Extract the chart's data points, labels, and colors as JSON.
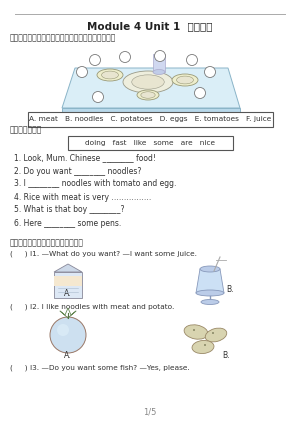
{
  "title": "Module 4 Unit 1  素质评价",
  "section1": "一、在食物或饮料旁的圆圈中填上相应的字母序号。",
  "word_box1": "A. meat   B. noodles   C. potatoes   D. eggs   E. tomatoes   F. juice",
  "section2": "二、选词填空。",
  "word_box2": "doing   fast   like   some   are   nice",
  "questions": [
    "1. Look, Mum. Chinese ________ food!",
    "2. Do you want ________ noodles?",
    "3. I ________ noodles with tomato and egg.",
    "4. Rice with meat is very …………….",
    "5. What is that boy ________?",
    "6. Here ________ some pens."
  ],
  "section3": "三、选出与句子或对话相符的图片。",
  "q1_text": "(     ) l1. —What do you want? —I want some juice.",
  "q2_text": "(     ) l2. I like noodles with meat and potato.",
  "q3_text": "(     ) l3. —Do you want some fish? —Yes, please.",
  "label_A": "A.",
  "label_B": "B.",
  "footer": "1/5",
  "bg_color": "#ffffff",
  "text_color": "#333333",
  "line_color": "#999999",
  "dark_text": "#222222"
}
